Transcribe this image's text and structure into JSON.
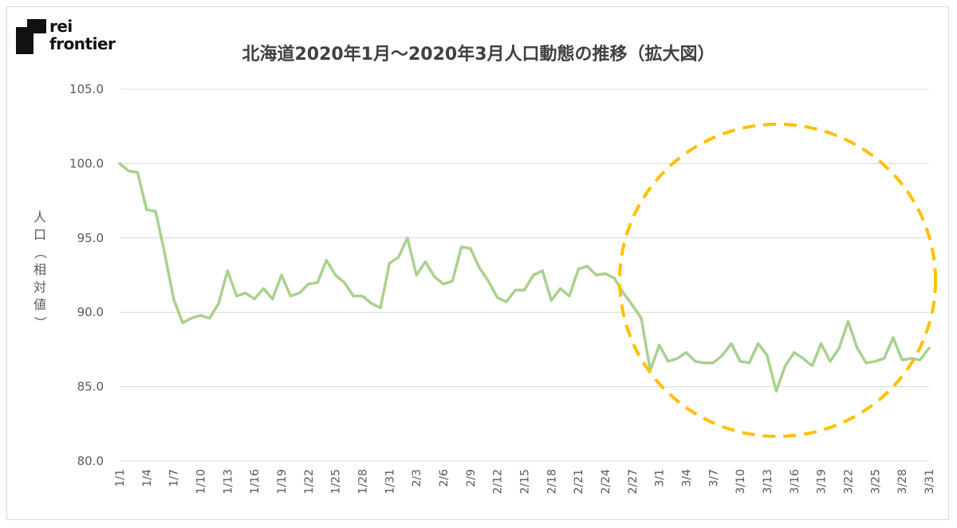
{
  "brand": {
    "line1": "rei",
    "line2": "frontier"
  },
  "chart_data": {
    "type": "line",
    "title": "北海道2020年1月～2020年3月人口動態の推移（拡大図）",
    "ylabel": "人口（相対値）",
    "xlabel": "",
    "ylim": [
      80,
      105
    ],
    "yticks": [
      "80.0",
      "85.0",
      "90.0",
      "95.0",
      "100.0",
      "105.0"
    ],
    "x_tick_labels": [
      "1/1",
      "1/4",
      "1/7",
      "1/10",
      "1/13",
      "1/16",
      "1/19",
      "1/22",
      "1/25",
      "1/28",
      "1/31",
      "2/3",
      "2/6",
      "2/9",
      "2/12",
      "2/15",
      "2/18",
      "2/21",
      "2/24",
      "2/27",
      "3/1",
      "3/4",
      "3/7",
      "3/10",
      "3/13",
      "3/16",
      "3/19",
      "3/22",
      "3/25",
      "3/28",
      "3/31"
    ],
    "x": [
      "1/1",
      "1/2",
      "1/3",
      "1/4",
      "1/5",
      "1/6",
      "1/7",
      "1/8",
      "1/9",
      "1/10",
      "1/11",
      "1/12",
      "1/13",
      "1/14",
      "1/15",
      "1/16",
      "1/17",
      "1/18",
      "1/19",
      "1/20",
      "1/21",
      "1/22",
      "1/23",
      "1/24",
      "1/25",
      "1/26",
      "1/27",
      "1/28",
      "1/29",
      "1/30",
      "1/31",
      "2/1",
      "2/2",
      "2/3",
      "2/4",
      "2/5",
      "2/6",
      "2/7",
      "2/8",
      "2/9",
      "2/10",
      "2/11",
      "2/12",
      "2/13",
      "2/14",
      "2/15",
      "2/16",
      "2/17",
      "2/18",
      "2/19",
      "2/20",
      "2/21",
      "2/22",
      "2/23",
      "2/24",
      "2/25",
      "2/26",
      "2/27",
      "2/28",
      "2/29",
      "3/1",
      "3/2",
      "3/3",
      "3/4",
      "3/5",
      "3/6",
      "3/7",
      "3/8",
      "3/9",
      "3/10",
      "3/11",
      "3/12",
      "3/13",
      "3/14",
      "3/15",
      "3/16",
      "3/17",
      "3/18",
      "3/19",
      "3/20",
      "3/21",
      "3/22",
      "3/23",
      "3/24",
      "3/25",
      "3/26",
      "3/27",
      "3/28",
      "3/29",
      "3/30",
      "3/31"
    ],
    "series": [
      {
        "values": [
          100.0,
          99.5,
          99.4,
          96.9,
          96.8,
          94.0,
          90.9,
          89.3,
          89.6,
          89.8,
          89.6,
          90.6,
          92.8,
          91.1,
          91.3,
          90.9,
          91.6,
          90.9,
          92.5,
          91.1,
          91.3,
          91.9,
          92.0,
          93.5,
          92.5,
          92.0,
          91.1,
          91.1,
          90.6,
          90.3,
          93.3,
          93.7,
          95.0,
          92.5,
          93.4,
          92.4,
          91.9,
          92.1,
          94.4,
          94.3,
          93.0,
          92.1,
          91.0,
          90.7,
          91.5,
          91.5,
          92.5,
          92.8,
          90.8,
          91.6,
          91.1,
          92.9,
          93.1,
          92.5,
          92.6,
          92.3,
          91.3,
          90.5,
          89.6,
          86.1,
          87.8,
          86.7,
          86.9,
          87.3,
          86.7,
          86.6,
          86.6,
          87.1,
          87.9,
          86.7,
          86.6,
          87.9,
          87.1,
          84.7,
          86.4,
          87.3,
          86.9,
          86.4,
          87.9,
          86.7,
          87.6,
          89.4,
          87.6,
          86.6,
          86.7,
          86.9,
          88.3,
          86.8,
          86.9,
          86.8,
          87.6
        ]
      }
    ],
    "line_color": "#a9d18e",
    "annotation_color": "#ffc000",
    "grid": true,
    "legend": "none"
  }
}
